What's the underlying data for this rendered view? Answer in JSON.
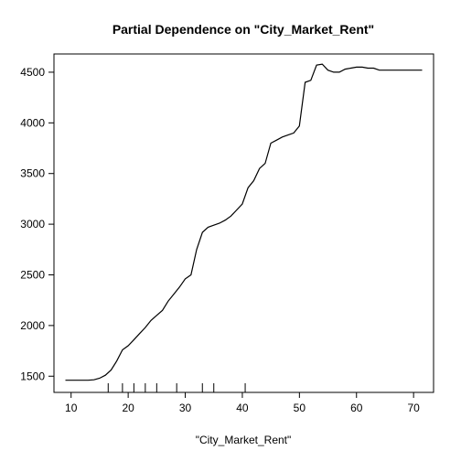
{
  "chart_data": {
    "type": "line",
    "title": "Partial Dependence on \"City_Market_Rent\"",
    "xlabel": "\"City_Market_Rent\"",
    "ylabel": "",
    "xlim": [
      7,
      73.5
    ],
    "ylim": [
      1340,
      4680
    ],
    "xticks": [
      10,
      20,
      30,
      40,
      50,
      60,
      70
    ],
    "yticks": [
      1500,
      2000,
      2500,
      3000,
      3500,
      4000,
      4500
    ],
    "grid": false,
    "x": [
      9,
      10,
      11,
      12,
      13,
      14,
      15,
      16,
      17,
      18,
      19,
      20,
      21,
      22,
      23,
      24,
      25,
      26,
      27,
      28,
      29,
      30,
      31,
      32,
      33,
      34,
      35,
      36,
      37,
      38,
      39,
      40,
      41,
      42,
      43,
      44,
      45,
      46,
      47,
      48,
      49,
      50,
      51,
      52,
      53,
      54,
      55,
      56,
      57,
      58,
      59,
      60,
      61,
      62,
      63,
      64,
      65,
      66,
      67,
      68,
      69,
      70,
      71,
      71.5
    ],
    "y": [
      1460,
      1460,
      1460,
      1460,
      1460,
      1465,
      1480,
      1510,
      1560,
      1650,
      1760,
      1800,
      1860,
      1920,
      1980,
      2050,
      2100,
      2150,
      2240,
      2310,
      2380,
      2460,
      2500,
      2750,
      2920,
      2970,
      2990,
      3010,
      3040,
      3080,
      3140,
      3200,
      3360,
      3430,
      3550,
      3600,
      3800,
      3830,
      3860,
      3880,
      3900,
      3970,
      4400,
      4420,
      4570,
      4580,
      4520,
      4500,
      4500,
      4530,
      4540,
      4550,
      4550,
      4540,
      4540,
      4520,
      4520,
      4520,
      4520,
      4520,
      4520,
      4520,
      4520,
      4520
    ],
    "rug": [
      16.5,
      19,
      21,
      23,
      25,
      28.5,
      33,
      35,
      40.5
    ]
  }
}
